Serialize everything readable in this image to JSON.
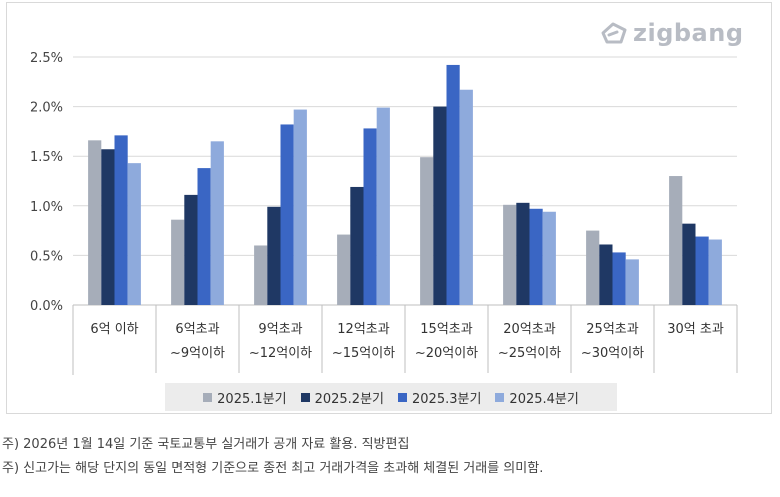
{
  "logo": {
    "text": "zigbang",
    "icon": "zigbang-house-icon"
  },
  "notes": [
    "주) 2026년 1월 14일 기준 국토교통부 실거래가 공개 자료 활용. 직방편집",
    "주) 신고가는 해당 단지의 동일 면적형 기준으로 종전 최고 거래가격을 초과해 체결된 거래를  의미함."
  ],
  "chart_data": {
    "type": "bar",
    "categories": [
      [
        "6억 이하"
      ],
      [
        "6억초과",
        "~9억이하"
      ],
      [
        "9억초과",
        "~12억이하"
      ],
      [
        "12억초과",
        "~15억이하"
      ],
      [
        "15억초과",
        "~20억이하"
      ],
      [
        "20억초과",
        "~25억이하"
      ],
      [
        "25억초과",
        "~30억이하"
      ],
      [
        "30억 초과"
      ]
    ],
    "series": [
      {
        "name": "2025.1분기",
        "color": "#a6adb9",
        "values": [
          1.66,
          0.86,
          0.6,
          0.71,
          1.49,
          1.01,
          0.75,
          1.3
        ]
      },
      {
        "name": "2025.2분기",
        "color": "#1f3864",
        "values": [
          1.57,
          1.11,
          0.99,
          1.19,
          2.0,
          1.03,
          0.61,
          0.82
        ]
      },
      {
        "name": "2025.3분기",
        "color": "#3a66c4",
        "values": [
          1.71,
          1.38,
          1.82,
          1.78,
          2.42,
          0.97,
          0.53,
          0.69
        ]
      },
      {
        "name": "2025.4분기",
        "color": "#8eaadc",
        "values": [
          1.43,
          1.65,
          1.97,
          1.99,
          2.17,
          0.94,
          0.46,
          0.66
        ]
      }
    ],
    "yticks": [
      "0.0%",
      "0.5%",
      "1.0%",
      "1.5%",
      "2.0%",
      "2.5%"
    ],
    "ylim": [
      0,
      2.5
    ],
    "grid": true,
    "legend_position": "bottom"
  }
}
